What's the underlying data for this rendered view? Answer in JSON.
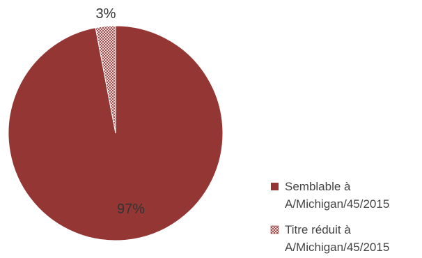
{
  "chart_data": {
    "type": "pie",
    "slices": [
      {
        "label_lines": [
          "Semblable à",
          "A/Michigan/45/2015"
        ],
        "value": 97,
        "value_label": "97%",
        "color": "#943634",
        "pattern": "solid"
      },
      {
        "label_lines": [
          "Titre réduit à",
          "A/Michigan/45/2015"
        ],
        "value": 3,
        "value_label": "3%",
        "color": "#943634",
        "pattern": "crosshatch"
      }
    ],
    "legend_position": "bottom-right"
  }
}
